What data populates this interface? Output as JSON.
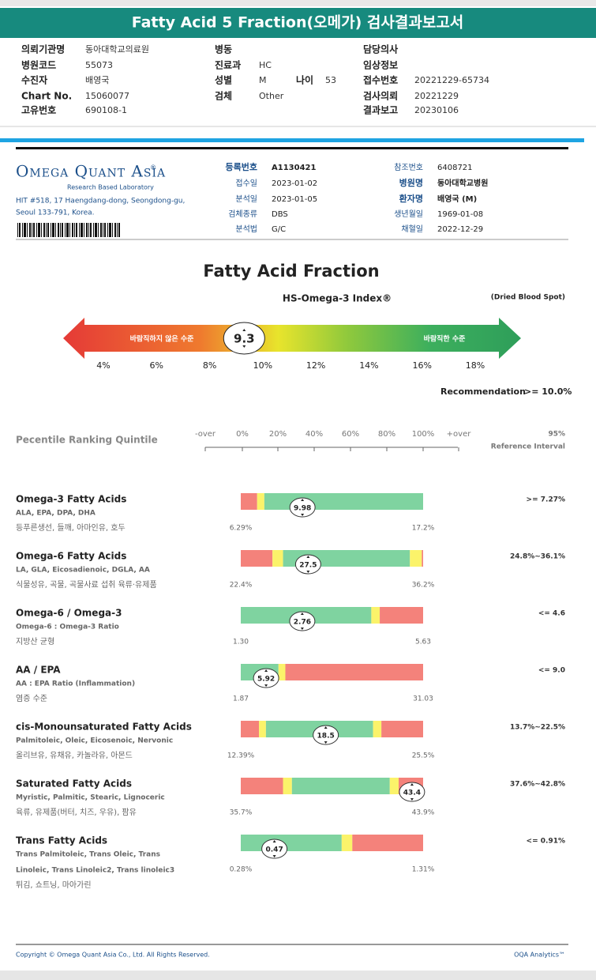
{
  "header": {
    "title": "Fatty Acid 5 Fraction(오메가) 검사결과보고서"
  },
  "patient": {
    "fields": [
      {
        "label": "의뢰기관명",
        "value": "동아대학교의료원"
      },
      {
        "label": "병원코드",
        "value": "55073"
      },
      {
        "label": "수진자",
        "value": "배영국"
      },
      {
        "label": "Chart No.",
        "value": "15060077"
      },
      {
        "label": "고유번호",
        "value": "690108-1"
      },
      {
        "label": "병동"
      },
      {
        "label": "진료과",
        "value": "HC"
      },
      {
        "label": "성별",
        "value": "M"
      },
      {
        "label": "나이",
        "value": "53"
      },
      {
        "label": "검체",
        "value": "Other"
      },
      {
        "label": "담당의사"
      },
      {
        "label": "임상정보"
      },
      {
        "label": "접수번호",
        "value": "20221229-65734"
      },
      {
        "label": "검사의뢰",
        "value": "20221229"
      },
      {
        "label": "결과보고",
        "value": "20230106"
      }
    ]
  },
  "lab": {
    "logo": "Omega Quant Asia",
    "logo_mark": "®",
    "tagline": "Research Based Laboratory",
    "address": [
      "HIT #518, 17 Haengdang-dong, Seongdong-gu,",
      "Seoul 133-791, Korea."
    ],
    "fields": [
      {
        "label": "등록번호",
        "value": "A1130421"
      },
      {
        "label": "접수일",
        "value": "2023-01-02"
      },
      {
        "label": "분석일",
        "value": "2023-01-05"
      },
      {
        "label": "검체종류",
        "value": "DBS"
      },
      {
        "label": "분석법",
        "value": "G/C"
      },
      {
        "label": "참조번호",
        "value": "6408721"
      },
      {
        "label": "병원명",
        "value": "동아대학교병원"
      },
      {
        "label": "환자명",
        "value": "배영국 (M)"
      },
      {
        "label": "생년월일",
        "value": "1969-01-08"
      },
      {
        "label": "채혈일",
        "value": "2022-12-29"
      }
    ]
  },
  "index": {
    "title": "Fatty Acid Fraction",
    "subtitle": "HS-Omega-3 Index®",
    "specimen": "(Dried Blood Spot)",
    "low_label": "바람직하지 않은 수준",
    "high_label": "바람직한 수준",
    "value": 9.3,
    "xticks": [
      {
        "value": 4,
        "label": "4%"
      },
      {
        "value": 6,
        "label": "6%"
      },
      {
        "value": 8,
        "label": "8%"
      },
      {
        "value": 10,
        "label": "10%"
      },
      {
        "value": 12,
        "label": "12%"
      },
      {
        "value": 14,
        "label": "14%"
      },
      {
        "value": 16,
        "label": "16%"
      },
      {
        "value": 18,
        "label": "18%"
      }
    ],
    "recommendation_label": "Recommendation",
    "recommendation": ">= 10.0%"
  },
  "ranking": {
    "title": "Pecentile Ranking Quintile",
    "scale_labels": [
      "-over",
      "0%",
      "20%",
      "40%",
      "60%",
      "80%",
      "100%",
      "+over"
    ],
    "ref_top": "95%",
    "ref_bottom": "Reference Interval"
  },
  "rows": [
    {
      "name": "Omega-3 Fatty Acids",
      "subtitle": [
        "ALA, EPA, DPA, DHA"
      ],
      "foods": "등푸른생선, 들깨, 아마인유, 호두",
      "value": 9.98,
      "min": {
        "value": 6.29,
        "label": "6.29%"
      },
      "max": {
        "value": 17.2,
        "label": "17.2%"
      },
      "stops": [
        7.27,
        7.7
      ],
      "colors": [
        "#f4827b",
        "#fbf36a",
        "#7fd3a0"
      ],
      "reference": ">= 7.27%"
    },
    {
      "name": "Omega-6 Fatty Acids",
      "subtitle": [
        "LA, GLA, Eicosadienoic, DGLA, AA"
      ],
      "foods": "식물성유, 곡물, 곡물사료 섭취 육류·유제품",
      "value": 27.5,
      "min": {
        "value": 22.4,
        "label": "22.4%"
      },
      "max": {
        "value": 36.2,
        "label": "36.2%"
      },
      "stops": [
        24.8,
        25.6,
        35.2,
        36.1
      ],
      "colors": [
        "#f4827b",
        "#fbf36a",
        "#7fd3a0",
        "#fbf36a",
        "#f4827b"
      ],
      "reference": "24.8%~36.1%"
    },
    {
      "name": "Omega-6 / Omega-3",
      "subtitle": [
        "Omega-6 : Omega-3 Ratio"
      ],
      "foods": "지방산 균형",
      "value": 2.76,
      "min": {
        "value": 1.3,
        "label": "1.30"
      },
      "max": 5.63,
      "stops": [
        4.4,
        4.6
      ],
      "colors": [
        "#7fd3a0",
        "#fbf36a",
        "#f4827b"
      ],
      "reference": "<= 4.6"
    },
    {
      "name": "AA / EPA",
      "subtitle": [
        "AA : EPA Ratio (Inflammation)"
      ],
      "foods": "염증 수준",
      "value": 5.92,
      "min": 1.87,
      "max": 31.03,
      "stops": [
        7.9,
        9
      ],
      "colors": [
        "#7fd3a0",
        "#fbf36a",
        "#f4827b"
      ],
      "reference": "<= 9.0"
    },
    {
      "name": "cis-Monounsaturated Fatty Acids",
      "subtitle": [
        "Palmitoleic, Oleic, Eicosenoic, Nervonic"
      ],
      "foods": "올리브유, 유채유, 카놀라유, 아몬드",
      "value": 18.5,
      "min": {
        "value": 12.39,
        "label": "12.39%"
      },
      "max": {
        "value": 25.5,
        "label": "25.5%"
      },
      "stops": [
        13.7,
        14.2,
        21.9,
        22.5
      ],
      "colors": [
        "#f4827b",
        "#fbf36a",
        "#7fd3a0",
        "#fbf36a",
        "#f4827b"
      ],
      "reference": "13.7%~22.5%"
    },
    {
      "name": "Saturated Fatty Acids",
      "subtitle": [
        "Myristic, Palmitic, Stearic, Lignoceric"
      ],
      "foods": "육류, 유제품(버터, 치즈, 우유), 팜유",
      "value": 43.4,
      "min": {
        "value": 35.7,
        "label": "35.7%"
      },
      "max": {
        "value": 43.9,
        "label": "43.9%"
      },
      "stops": [
        37.6,
        38,
        42.4,
        42.8
      ],
      "colors": [
        "#f4827b",
        "#fbf36a",
        "#7fd3a0",
        "#fbf36a",
        "#f4827b"
      ],
      "reference": "37.6%~42.8%"
    },
    {
      "name": "Trans Fatty Acids",
      "subtitle": [
        "Trans Palmitoleic, Trans Oleic, Trans",
        "Linoleic, Trans Linoleic2, Trans linoleic3"
      ],
      "foods": "튀김, 쇼트닝, 마아가린",
      "value": 0.47,
      "min": {
        "value": 0.28,
        "label": "0.28%"
      },
      "max": {
        "value": 1.31,
        "label": "1.31%"
      },
      "stops": [
        0.85,
        0.91
      ],
      "colors": [
        "#7fd3a0",
        "#fbf36a",
        "#f4827b"
      ],
      "reference": "<= 0.91%"
    }
  ],
  "footer": {
    "copyright": "Copyright © Omega Quant Asia Co., Ltd.  All Rights Reserved.",
    "brand": "OQA Analytics™"
  }
}
